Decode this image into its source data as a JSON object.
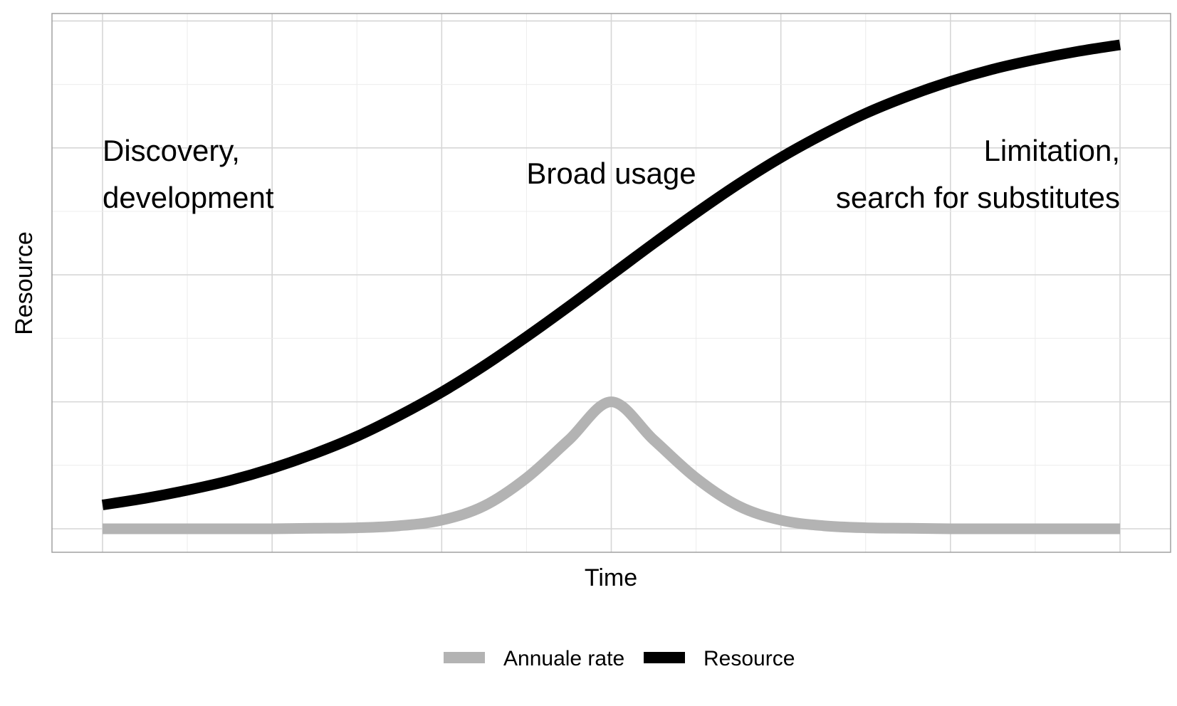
{
  "chart_data": {
    "type": "line",
    "title": "",
    "xlabel": "Time",
    "ylabel": "Resource",
    "xlim": [
      -3,
      3
    ],
    "ylim": [
      -0.035,
      1.0
    ],
    "grid": true,
    "legend_position": "bottom",
    "series": [
      {
        "name": "Annuale rate",
        "color": "#b3b3b3",
        "x": [
          -3,
          -2.75,
          -2.5,
          -2.25,
          -2,
          -1.75,
          -1.5,
          -1.25,
          -1,
          -0.75,
          -0.5,
          -0.25,
          0,
          0.25,
          0.5,
          0.75,
          1,
          1.25,
          1.5,
          1.75,
          2,
          2.25,
          2.5,
          2.75,
          3
        ],
        "y": [
          0,
          0,
          0,
          0,
          0,
          0.001,
          0.002,
          0.006,
          0.017,
          0.045,
          0.1,
          0.175,
          0.25,
          0.175,
          0.1,
          0.045,
          0.017,
          0.006,
          0.002,
          0.001,
          0,
          0,
          0,
          0,
          0
        ]
      },
      {
        "name": "Resource",
        "color": "#000000",
        "x": [
          -3,
          -2.75,
          -2.5,
          -2.25,
          -2,
          -1.75,
          -1.5,
          -1.25,
          -1,
          -0.75,
          -0.5,
          -0.25,
          0,
          0.25,
          0.5,
          0.75,
          1,
          1.25,
          1.5,
          1.75,
          2,
          2.25,
          2.5,
          2.75,
          3
        ],
        "y": [
          0.047,
          0.06,
          0.076,
          0.095,
          0.119,
          0.148,
          0.182,
          0.223,
          0.269,
          0.321,
          0.378,
          0.438,
          0.5,
          0.562,
          0.622,
          0.679,
          0.731,
          0.777,
          0.818,
          0.852,
          0.881,
          0.905,
          0.924,
          0.94,
          0.953
        ]
      }
    ],
    "annotations": [
      {
        "lines": [
          "Discovery,",
          "development"
        ],
        "x": -3,
        "y": 0.73,
        "align": "left"
      },
      {
        "lines": [
          "Broad usage"
        ],
        "x": 0,
        "y": 0.7,
        "align": "center"
      },
      {
        "lines": [
          "Limitation,",
          "search for substitutes"
        ],
        "x": 3,
        "y": 0.73,
        "align": "right"
      }
    ]
  }
}
